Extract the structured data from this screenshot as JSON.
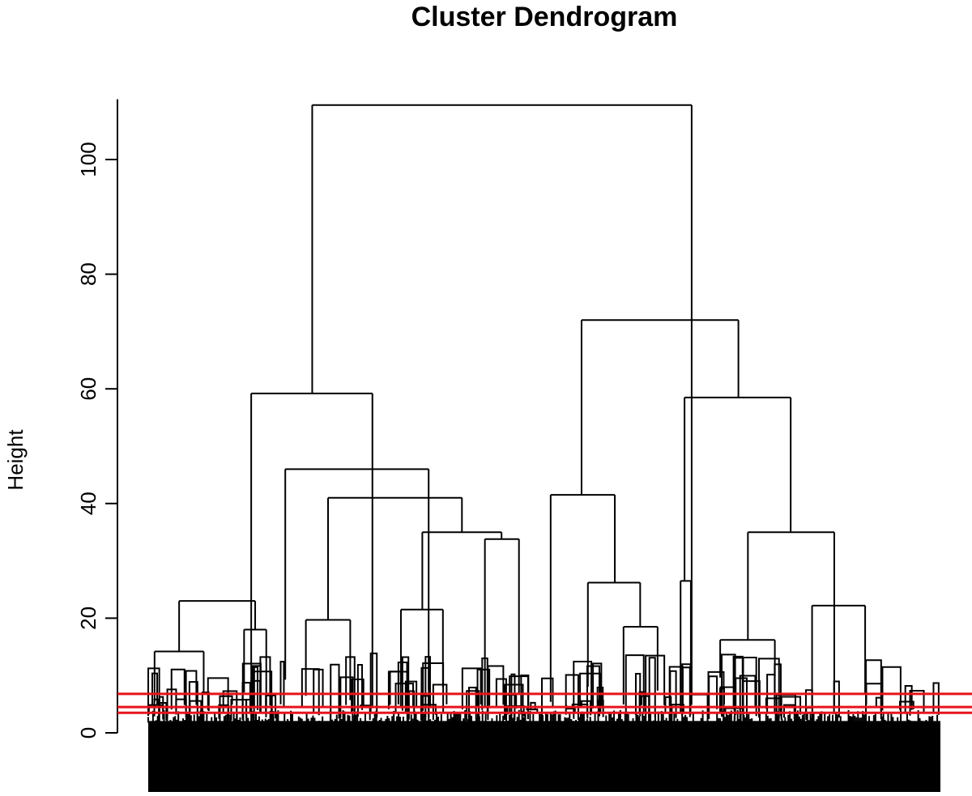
{
  "chart_data": {
    "type": "dendrogram",
    "title": "Cluster Dendrogram",
    "ylabel": "Height",
    "xlabel": "",
    "ylim": [
      0,
      110
    ],
    "yticks": [
      0,
      20,
      40,
      60,
      80,
      100
    ],
    "cut_heights": [
      3.5,
      4.5,
      6.8
    ],
    "cut_color": "#e8131b",
    "merges": [
      {
        "height": 109.5,
        "left_x": 0.207,
        "right_x": 0.686
      },
      {
        "height": 59.2,
        "left_x": 0.13,
        "right_x": 0.283
      },
      {
        "height": 23.0,
        "left_x": 0.039,
        "right_x": 0.135
      },
      {
        "height": 14.2,
        "left_x": 0.008,
        "right_x": 0.07
      },
      {
        "height": 18.0,
        "left_x": 0.121,
        "right_x": 0.149
      },
      {
        "height": 46.0,
        "left_x": 0.173,
        "right_x": 0.354
      },
      {
        "height": 41.0,
        "left_x": 0.227,
        "right_x": 0.396
      },
      {
        "height": 19.7,
        "left_x": 0.199,
        "right_x": 0.255
      },
      {
        "height": 35.0,
        "left_x": 0.346,
        "right_x": 0.446
      },
      {
        "height": 21.5,
        "left_x": 0.319,
        "right_x": 0.372
      },
      {
        "height": 33.8,
        "left_x": 0.425,
        "right_x": 0.468
      },
      {
        "height": 72.0,
        "left_x": 0.547,
        "right_x": 0.745
      },
      {
        "height": 41.5,
        "left_x": 0.508,
        "right_x": 0.589
      },
      {
        "height": 26.2,
        "left_x": 0.555,
        "right_x": 0.621
      },
      {
        "height": 18.5,
        "left_x": 0.6,
        "right_x": 0.643
      },
      {
        "height": 58.5,
        "left_x": 0.677,
        "right_x": 0.811
      },
      {
        "height": 26.5,
        "left_x": 0.672,
        "right_x": 0.685
      },
      {
        "height": 35.0,
        "left_x": 0.757,
        "right_x": 0.866
      },
      {
        "height": 16.2,
        "left_x": 0.722,
        "right_x": 0.791
      },
      {
        "height": 22.2,
        "left_x": 0.838,
        "right_x": 0.905
      }
    ],
    "n_leaves_approx": 800
  }
}
